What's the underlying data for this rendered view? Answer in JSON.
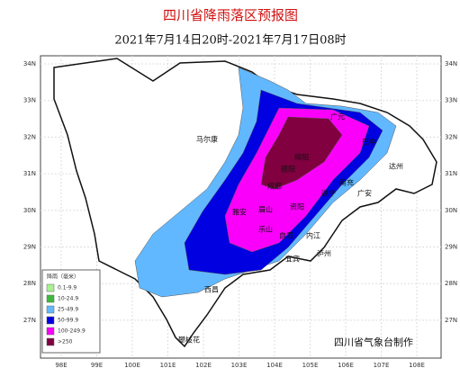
{
  "header": {
    "title": "四川省降雨落区预报图",
    "subtitle": "2021年7月14日20时-2021年7月17日08时"
  },
  "map": {
    "lat_labels": [
      "34N",
      "33N",
      "32N",
      "31N",
      "30N",
      "29N",
      "28N",
      "27N"
    ],
    "lon_labels": [
      "98E",
      "99E",
      "100E",
      "101E",
      "102E",
      "103E",
      "104E",
      "105E",
      "106E",
      "107E",
      "108E"
    ],
    "cities": [
      "马尔康",
      "广元",
      "巴中",
      "绵阳",
      "德阳",
      "成都",
      "南充",
      "达州",
      "遂宁",
      "广安",
      "雅安",
      "眉山",
      "资阳",
      "乐山",
      "内江",
      "自贡",
      "宜宾",
      "泸州",
      "西昌",
      "攀枝花"
    ]
  },
  "legend": {
    "title": "降雨（毫米）",
    "items": [
      {
        "label": "0.1-9.9",
        "color": "#a6f28f"
      },
      {
        "label": "10-24.9",
        "color": "#3dba3d"
      },
      {
        "label": "25-49.9",
        "color": "#61b8ff"
      },
      {
        "label": "50-99.9",
        "color": "#0000e1"
      },
      {
        "label": "100-249.9",
        "color": "#fa00fa"
      },
      {
        "label": ">250",
        "color": "#800040"
      }
    ]
  },
  "footer": {
    "credit": "四川省气象台制作"
  }
}
